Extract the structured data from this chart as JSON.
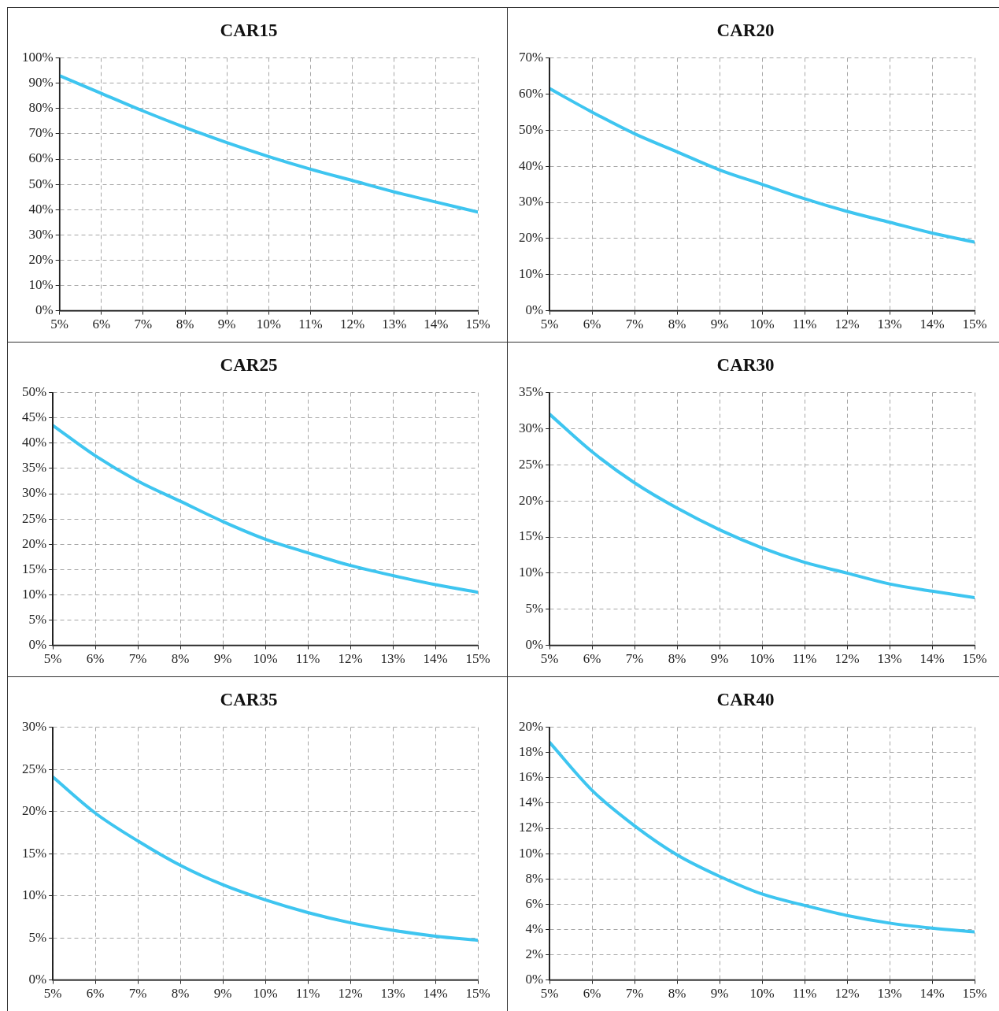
{
  "chart_data": [
    {
      "type": "line",
      "title": "CAR15",
      "x": [
        5,
        6,
        7,
        8,
        9,
        10,
        11,
        12,
        13,
        14,
        15
      ],
      "series": [
        {
          "color": "#3ec5f0",
          "values": [
            93,
            86,
            79,
            72.5,
            66.5,
            61,
            56,
            51.5,
            47,
            43,
            39
          ]
        }
      ],
      "xlim": [
        5,
        15
      ],
      "xticks": [
        {
          "value": 5,
          "label": "5%"
        },
        {
          "value": 6,
          "label": "6%"
        },
        {
          "value": 7,
          "label": "7%"
        },
        {
          "value": 8,
          "label": "8%"
        },
        {
          "value": 9,
          "label": "9%"
        },
        {
          "value": 10,
          "label": "10%"
        },
        {
          "value": 11,
          "label": "11%"
        },
        {
          "value": 12,
          "label": "12%"
        },
        {
          "value": 13,
          "label": "13%"
        },
        {
          "value": 14,
          "label": "14%"
        },
        {
          "value": 15,
          "label": "15%"
        }
      ],
      "ylim": [
        0,
        100
      ],
      "yticks": [
        {
          "value": 0,
          "label": "0%"
        },
        {
          "value": 10,
          "label": "10%"
        },
        {
          "value": 20,
          "label": "20%"
        },
        {
          "value": 30,
          "label": "30%"
        },
        {
          "value": 40,
          "label": "40%"
        },
        {
          "value": 50,
          "label": "50%"
        },
        {
          "value": 60,
          "label": "60%"
        },
        {
          "value": 70,
          "label": "70%"
        },
        {
          "value": 80,
          "label": "80%"
        },
        {
          "value": 90,
          "label": "90%"
        },
        {
          "value": 100,
          "label": "100%"
        }
      ],
      "grid": true,
      "legend": false,
      "marker": "none",
      "line_style": "solid"
    },
    {
      "type": "line",
      "title": "CAR20",
      "x": [
        5,
        6,
        7,
        8,
        9,
        10,
        11,
        12,
        13,
        14,
        15
      ],
      "series": [
        {
          "color": "#3ec5f0",
          "values": [
            61.5,
            55,
            49,
            44,
            39,
            35,
            31,
            27.5,
            24.5,
            21.5,
            19
          ]
        }
      ],
      "xlim": [
        5,
        15
      ],
      "xticks": [
        {
          "value": 5,
          "label": "5%"
        },
        {
          "value": 6,
          "label": "6%"
        },
        {
          "value": 7,
          "label": "7%"
        },
        {
          "value": 8,
          "label": "8%"
        },
        {
          "value": 9,
          "label": "9%"
        },
        {
          "value": 10,
          "label": "10%"
        },
        {
          "value": 11,
          "label": "11%"
        },
        {
          "value": 12,
          "label": "12%"
        },
        {
          "value": 13,
          "label": "13%"
        },
        {
          "value": 14,
          "label": "14%"
        },
        {
          "value": 15,
          "label": "15%"
        }
      ],
      "ylim": [
        0,
        70
      ],
      "yticks": [
        {
          "value": 0,
          "label": "0%"
        },
        {
          "value": 10,
          "label": "10%"
        },
        {
          "value": 20,
          "label": "20%"
        },
        {
          "value": 30,
          "label": "30%"
        },
        {
          "value": 40,
          "label": "40%"
        },
        {
          "value": 50,
          "label": "50%"
        },
        {
          "value": 60,
          "label": "60%"
        },
        {
          "value": 70,
          "label": "70%"
        }
      ],
      "grid": true,
      "legend": false,
      "marker": "none",
      "line_style": "solid"
    },
    {
      "type": "line",
      "title": "CAR25",
      "x": [
        5,
        6,
        7,
        8,
        9,
        10,
        11,
        12,
        13,
        14,
        15
      ],
      "series": [
        {
          "color": "#3ec5f0",
          "values": [
            43.5,
            37.5,
            32.5,
            28.5,
            24.5,
            21,
            18.3,
            15.8,
            13.8,
            12,
            10.5
          ]
        }
      ],
      "xlim": [
        5,
        15
      ],
      "xticks": [
        {
          "value": 5,
          "label": "5%"
        },
        {
          "value": 6,
          "label": "6%"
        },
        {
          "value": 7,
          "label": "7%"
        },
        {
          "value": 8,
          "label": "8%"
        },
        {
          "value": 9,
          "label": "9%"
        },
        {
          "value": 10,
          "label": "10%"
        },
        {
          "value": 11,
          "label": "11%"
        },
        {
          "value": 12,
          "label": "12%"
        },
        {
          "value": 13,
          "label": "13%"
        },
        {
          "value": 14,
          "label": "14%"
        },
        {
          "value": 15,
          "label": "15%"
        }
      ],
      "ylim": [
        0,
        50
      ],
      "yticks": [
        {
          "value": 0,
          "label": "0%"
        },
        {
          "value": 5,
          "label": "5%"
        },
        {
          "value": 10,
          "label": "10%"
        },
        {
          "value": 15,
          "label": "15%"
        },
        {
          "value": 20,
          "label": "20%"
        },
        {
          "value": 25,
          "label": "25%"
        },
        {
          "value": 30,
          "label": "30%"
        },
        {
          "value": 35,
          "label": "35%"
        },
        {
          "value": 40,
          "label": "40%"
        },
        {
          "value": 45,
          "label": "45%"
        },
        {
          "value": 50,
          "label": "50%"
        }
      ],
      "grid": true,
      "legend": false,
      "marker": "none",
      "line_style": "solid"
    },
    {
      "type": "line",
      "title": "CAR30",
      "x": [
        5,
        6,
        7,
        8,
        9,
        10,
        11,
        12,
        13,
        14,
        15
      ],
      "series": [
        {
          "color": "#3ec5f0",
          "values": [
            32,
            26.8,
            22.5,
            19,
            16,
            13.5,
            11.5,
            10,
            8.5,
            7.5,
            6.6
          ]
        }
      ],
      "xlim": [
        5,
        15
      ],
      "xticks": [
        {
          "value": 5,
          "label": "5%"
        },
        {
          "value": 6,
          "label": "6%"
        },
        {
          "value": 7,
          "label": "7%"
        },
        {
          "value": 8,
          "label": "8%"
        },
        {
          "value": 9,
          "label": "9%"
        },
        {
          "value": 10,
          "label": "10%"
        },
        {
          "value": 11,
          "label": "11%"
        },
        {
          "value": 12,
          "label": "12%"
        },
        {
          "value": 13,
          "label": "13%"
        },
        {
          "value": 14,
          "label": "14%"
        },
        {
          "value": 15,
          "label": "15%"
        }
      ],
      "ylim": [
        0,
        35
      ],
      "yticks": [
        {
          "value": 0,
          "label": "0%"
        },
        {
          "value": 5,
          "label": "5%"
        },
        {
          "value": 10,
          "label": "10%"
        },
        {
          "value": 15,
          "label": "15%"
        },
        {
          "value": 20,
          "label": "20%"
        },
        {
          "value": 25,
          "label": "25%"
        },
        {
          "value": 30,
          "label": "30%"
        },
        {
          "value": 35,
          "label": "35%"
        }
      ],
      "grid": true,
      "legend": false,
      "marker": "none",
      "line_style": "solid"
    },
    {
      "type": "line",
      "title": "CAR35",
      "x": [
        5,
        6,
        7,
        8,
        9,
        10,
        11,
        12,
        13,
        14,
        15
      ],
      "series": [
        {
          "color": "#3ec5f0",
          "values": [
            24.1,
            19.8,
            16.5,
            13.6,
            11.3,
            9.5,
            8,
            6.8,
            5.9,
            5.2,
            4.7
          ]
        }
      ],
      "xlim": [
        5,
        15
      ],
      "xticks": [
        {
          "value": 5,
          "label": "5%"
        },
        {
          "value": 6,
          "label": "6%"
        },
        {
          "value": 7,
          "label": "7%"
        },
        {
          "value": 8,
          "label": "8%"
        },
        {
          "value": 9,
          "label": "9%"
        },
        {
          "value": 10,
          "label": "10%"
        },
        {
          "value": 11,
          "label": "11%"
        },
        {
          "value": 12,
          "label": "12%"
        },
        {
          "value": 13,
          "label": "13%"
        },
        {
          "value": 14,
          "label": "14%"
        },
        {
          "value": 15,
          "label": "15%"
        }
      ],
      "ylim": [
        0,
        30
      ],
      "yticks": [
        {
          "value": 0,
          "label": "0%"
        },
        {
          "value": 5,
          "label": "5%"
        },
        {
          "value": 10,
          "label": "10%"
        },
        {
          "value": 15,
          "label": "15%"
        },
        {
          "value": 20,
          "label": "20%"
        },
        {
          "value": 25,
          "label": "25%"
        },
        {
          "value": 30,
          "label": "30%"
        }
      ],
      "grid": true,
      "legend": false,
      "marker": "none",
      "line_style": "solid"
    },
    {
      "type": "line",
      "title": "CAR40",
      "x": [
        5,
        6,
        7,
        8,
        9,
        10,
        11,
        12,
        13,
        14,
        15
      ],
      "series": [
        {
          "color": "#3ec5f0",
          "values": [
            18.8,
            15,
            12.2,
            9.9,
            8.2,
            6.8,
            5.9,
            5.1,
            4.5,
            4.1,
            3.8
          ]
        }
      ],
      "xlim": [
        5,
        15
      ],
      "xticks": [
        {
          "value": 5,
          "label": "5%"
        },
        {
          "value": 6,
          "label": "6%"
        },
        {
          "value": 7,
          "label": "7%"
        },
        {
          "value": 8,
          "label": "8%"
        },
        {
          "value": 9,
          "label": "9%"
        },
        {
          "value": 10,
          "label": "10%"
        },
        {
          "value": 11,
          "label": "11%"
        },
        {
          "value": 12,
          "label": "12%"
        },
        {
          "value": 13,
          "label": "13%"
        },
        {
          "value": 14,
          "label": "14%"
        },
        {
          "value": 15,
          "label": "15%"
        }
      ],
      "ylim": [
        0,
        20
      ],
      "yticks": [
        {
          "value": 0,
          "label": "0%"
        },
        {
          "value": 2,
          "label": "2%"
        },
        {
          "value": 4,
          "label": "4%"
        },
        {
          "value": 6,
          "label": "6%"
        },
        {
          "value": 8,
          "label": "8%"
        },
        {
          "value": 10,
          "label": "10%"
        },
        {
          "value": 12,
          "label": "12%"
        },
        {
          "value": 14,
          "label": "14%"
        },
        {
          "value": 16,
          "label": "16%"
        },
        {
          "value": 18,
          "label": "18%"
        },
        {
          "value": 20,
          "label": "20%"
        }
      ],
      "grid": true,
      "legend": false,
      "marker": "none",
      "line_style": "solid"
    }
  ]
}
